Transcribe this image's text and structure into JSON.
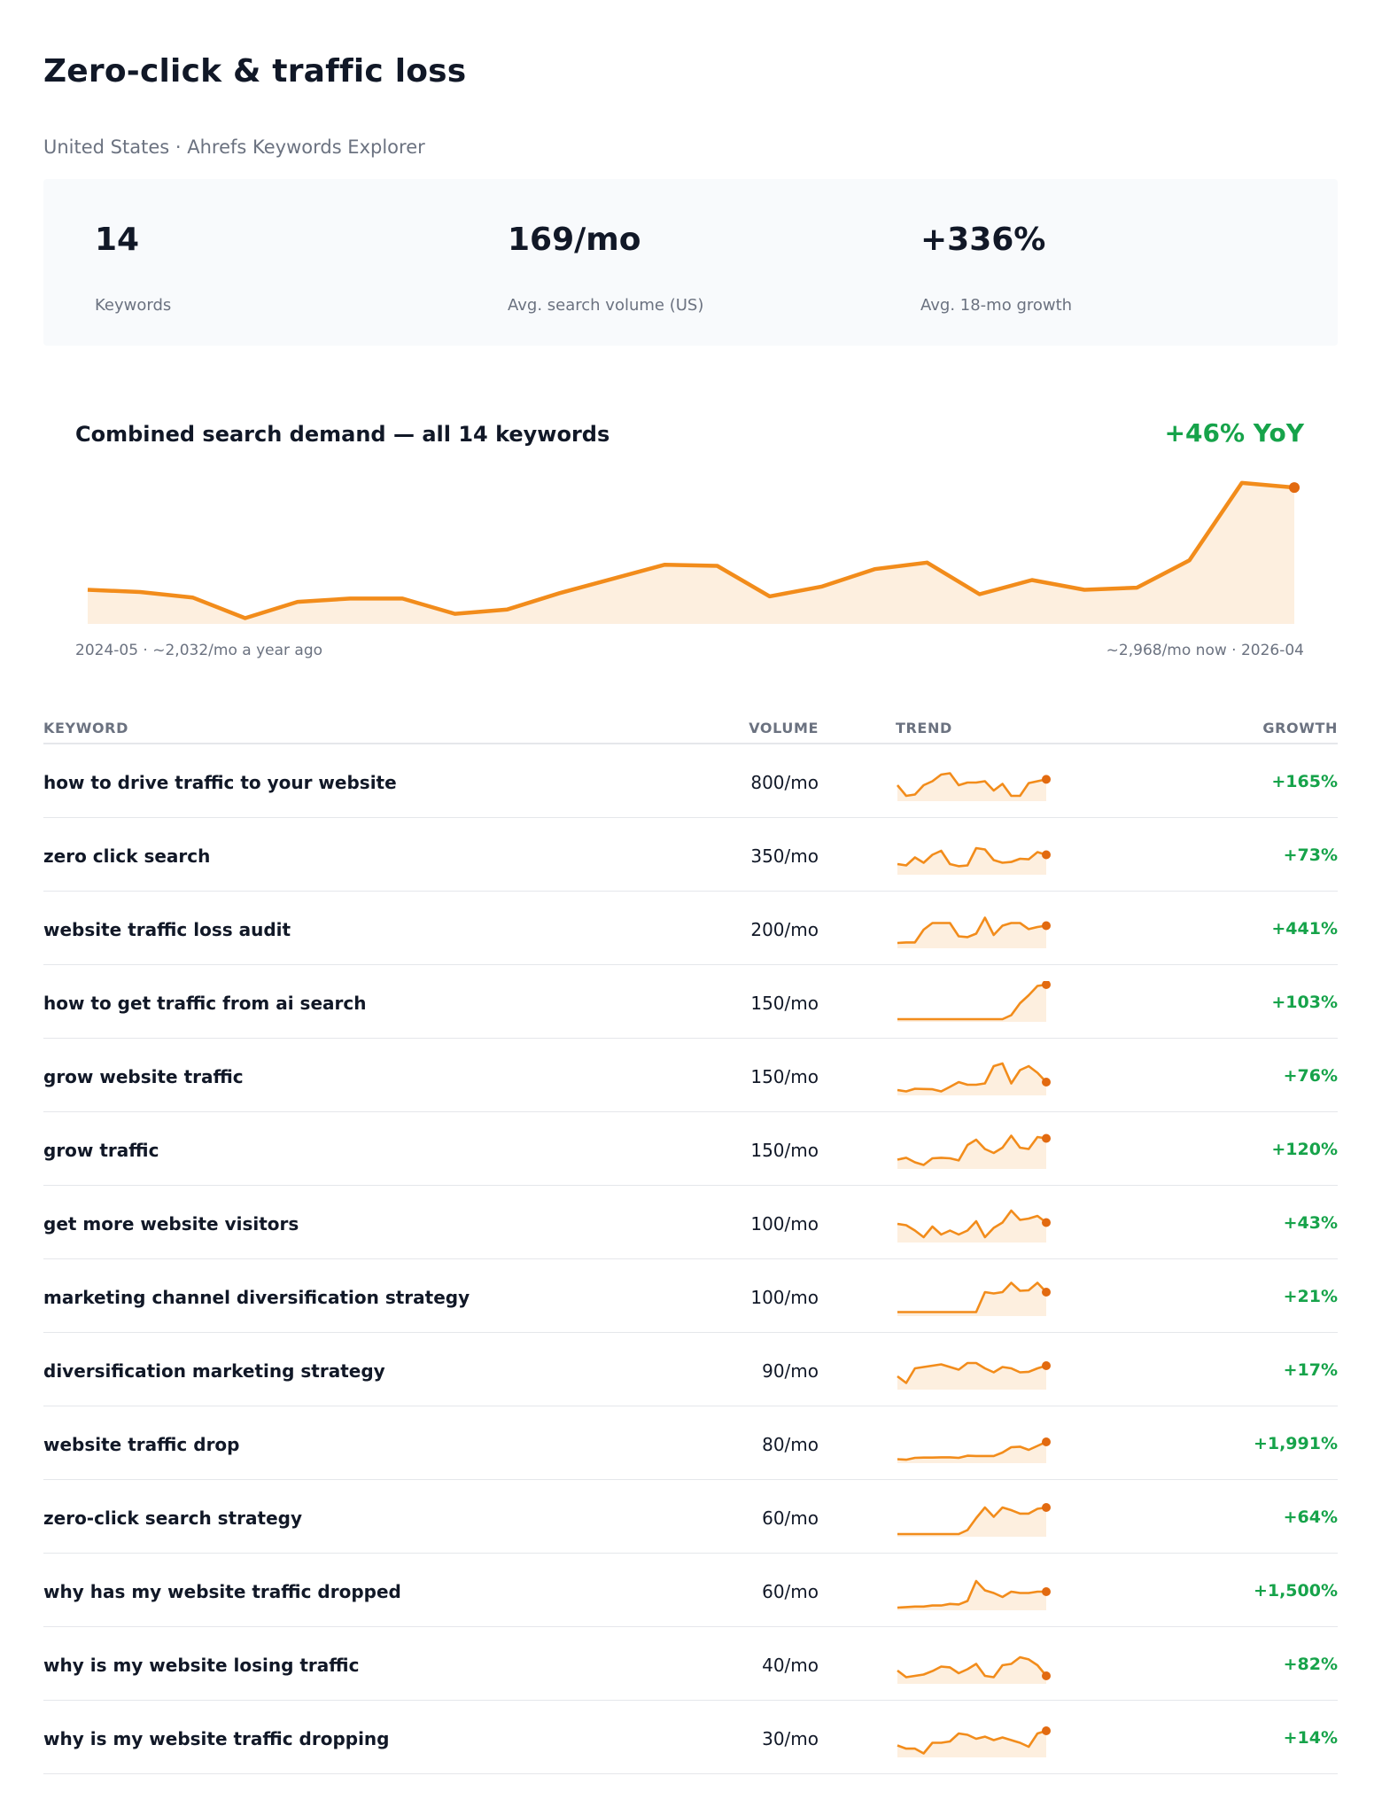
{
  "header": {
    "title": "Zero-click & traffic loss",
    "subtitle": "United States · Ahrefs Keywords Explorer"
  },
  "stats": [
    {
      "value": "14",
      "label": "Keywords"
    },
    {
      "value": "169/mo",
      "label": "Avg. search volume (US)"
    },
    {
      "value": "+336%",
      "label": "Avg. 18-mo growth"
    }
  ],
  "trend": {
    "title": "Combined search demand — all 14 keywords",
    "yoy": "+46% YoY",
    "caption_left": "2024-05 · ~2,032/mo a year ago",
    "caption_right": "~2,968/mo now · 2026-04"
  },
  "colors": {
    "line": "#f28c1b",
    "fill": "#fdefdf",
    "endpoint": "#e26a10",
    "growth": "#16a34a"
  },
  "chart_data": {
    "type": "area",
    "x": [
      "2024-05",
      "2024-06",
      "2024-07",
      "2024-08",
      "2024-09",
      "2024-10",
      "2024-11",
      "2024-12",
      "2025-01",
      "2025-02",
      "2025-03",
      "2025-04",
      "2025-05",
      "2025-06",
      "2025-07",
      "2025-08",
      "2025-09",
      "2025-10",
      "2025-11",
      "2025-12",
      "2026-01",
      "2026-02",
      "2026-03",
      "2026-04"
    ],
    "values": [
      2030,
      2010,
      1960,
      1770,
      1920,
      1950,
      1950,
      1810,
      1850,
      2000,
      2130,
      2260,
      2250,
      1970,
      2060,
      2220,
      2280,
      1990,
      2120,
      2030,
      2050,
      2300,
      3010,
      2968
    ],
    "ylim": [
      1750,
      3050
    ],
    "grid": false
  },
  "table": {
    "headers": {
      "keyword": "KEYWORD",
      "volume": "VOLUME",
      "trend": "TREND",
      "growth": "GROWTH"
    },
    "rows": [
      {
        "keyword": "how to drive traffic to your website",
        "volume": "800/mo",
        "growth": "+165%",
        "trend": [
          60,
          20,
          25,
          60,
          75,
          100,
          105,
          60,
          70,
          70,
          75,
          40,
          65,
          20,
          20,
          68,
          75,
          82
        ]
      },
      {
        "keyword": "zero click search",
        "volume": "350/mo",
        "growth": "+73%",
        "trend": [
          40,
          35,
          65,
          45,
          75,
          90,
          40,
          32,
          35,
          100,
          95,
          55,
          45,
          48,
          60,
          58,
          85,
          75
        ]
      },
      {
        "keyword": "website traffic loss audit",
        "volume": "200/mo",
        "growth": "+441%",
        "trend": [
          20,
          22,
          22,
          70,
          95,
          95,
          95,
          45,
          42,
          55,
          115,
          50,
          85,
          95,
          95,
          72,
          80,
          85
        ]
      },
      {
        "keyword": "how to get traffic from ai search",
        "volume": "150/mo",
        "growth": "+103%",
        "trend": [
          10,
          10,
          10,
          10,
          10,
          10,
          10,
          10,
          10,
          10,
          10,
          10,
          10,
          25,
          70,
          100,
          135,
          140
        ]
      },
      {
        "keyword": "grow website traffic",
        "volume": "150/mo",
        "growth": "+76%",
        "trend": [
          20,
          15,
          25,
          24,
          23,
          15,
          32,
          50,
          40,
          40,
          45,
          110,
          120,
          45,
          95,
          110,
          85,
          50
        ]
      },
      {
        "keyword": "grow traffic",
        "volume": "150/mo",
        "growth": "+120%",
        "trend": [
          35,
          42,
          25,
          15,
          40,
          42,
          40,
          32,
          90,
          110,
          75,
          60,
          80,
          125,
          80,
          75,
          120,
          115
        ]
      },
      {
        "keyword": "get more website visitors",
        "volume": "100/mo",
        "growth": "+43%",
        "trend": [
          70,
          65,
          45,
          20,
          60,
          30,
          45,
          30,
          45,
          80,
          20,
          55,
          75,
          120,
          85,
          90,
          100,
          75
        ]
      },
      {
        "keyword": "marketing channel diversification strategy",
        "volume": "100/mo",
        "growth": "+21%",
        "trend": [
          15,
          15,
          15,
          15,
          15,
          15,
          15,
          15,
          15,
          15,
          90,
          85,
          90,
          125,
          95,
          97,
          125,
          90
        ]
      },
      {
        "keyword": "diversification marketing strategy",
        "volume": "90/mo",
        "growth": "+17%",
        "trend": [
          50,
          25,
          80,
          85,
          90,
          95,
          85,
          75,
          100,
          100,
          80,
          65,
          85,
          80,
          65,
          67,
          80,
          90
        ]
      },
      {
        "keyword": "website traffic drop",
        "volume": "80/mo",
        "growth": "+1,991%",
        "trend": [
          15,
          13,
          20,
          21,
          21,
          22,
          22,
          20,
          28,
          27,
          27,
          27,
          40,
          60,
          62,
          50,
          65,
          80
        ]
      },
      {
        "keyword": "zero-click search strategy",
        "volume": "60/mo",
        "growth": "+64%",
        "trend": [
          10,
          10,
          10,
          10,
          10,
          10,
          10,
          10,
          25,
          70,
          110,
          75,
          110,
          100,
          87,
          87,
          105,
          110
        ]
      },
      {
        "keyword": "why has my website traffic dropped",
        "volume": "60/mo",
        "growth": "+1,500%",
        "trend": [
          10,
          12,
          14,
          14,
          18,
          18,
          24,
          22,
          35,
          110,
          75,
          65,
          50,
          70,
          65,
          65,
          70,
          70
        ]
      },
      {
        "keyword": "why is my website losing traffic",
        "volume": "40/mo",
        "growth": "+82%",
        "trend": [
          50,
          25,
          30,
          35,
          48,
          65,
          62,
          40,
          55,
          75,
          30,
          25,
          70,
          75,
          100,
          92,
          70,
          30
        ]
      },
      {
        "keyword": "why is my website traffic dropping",
        "volume": "30/mo",
        "growth": "+14%",
        "trend": [
          45,
          33,
          33,
          15,
          55,
          55,
          60,
          90,
          85,
          70,
          78,
          65,
          75,
          65,
          55,
          40,
          90,
          100
        ]
      }
    ]
  }
}
